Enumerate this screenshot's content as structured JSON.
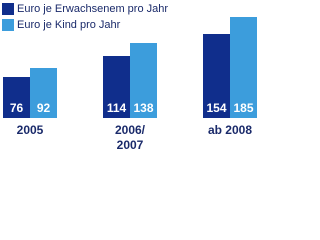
{
  "chart_data": {
    "type": "bar",
    "categories": [
      "2005",
      "2006/\n2007",
      "ab 2008"
    ],
    "series": [
      {
        "name": "Euro je Erwachsenem pro Jahr",
        "color": "#102e8c",
        "values": [
          76,
          114,
          154
        ]
      },
      {
        "name": "Euro je Kind pro Jahr",
        "color": "#3c9ddc",
        "values": [
          92,
          138,
          185
        ]
      }
    ]
  }
}
